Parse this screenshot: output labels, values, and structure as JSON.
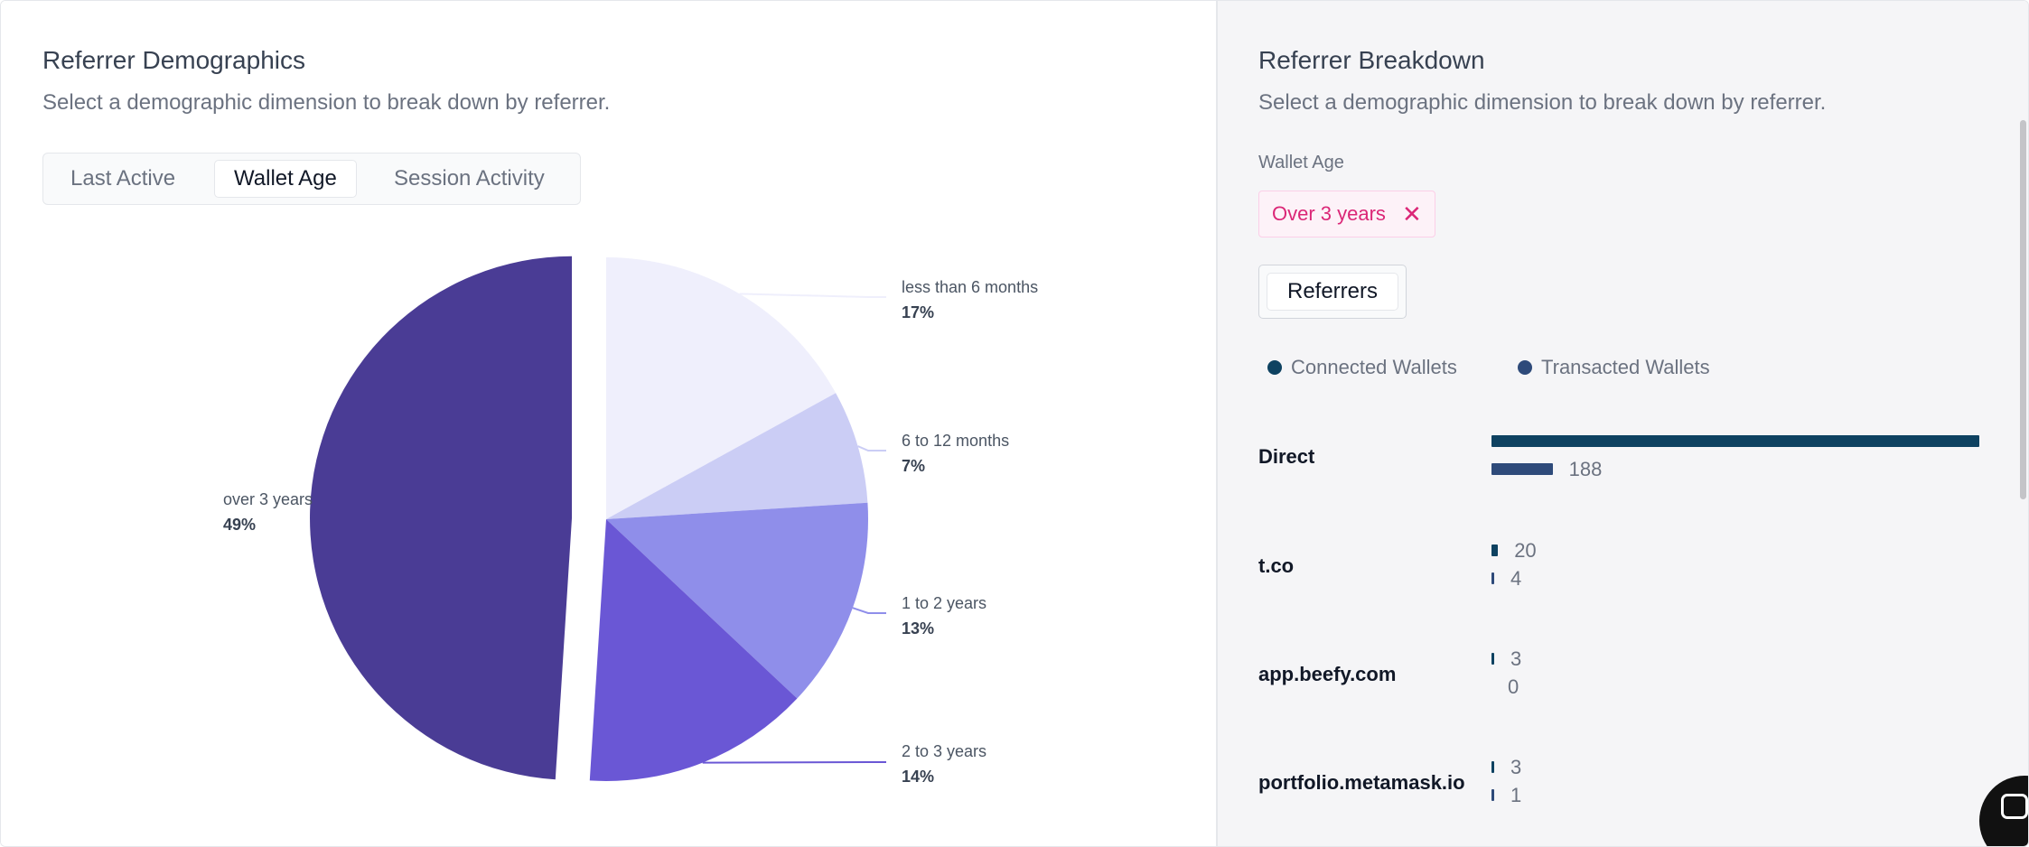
{
  "left_panel": {
    "title": "Referrer Demographics",
    "subtitle": "Select a demographic dimension to break down by referrer.",
    "tabs": [
      {
        "label": "Last Active",
        "active": false
      },
      {
        "label": "Wallet Age",
        "active": true
      },
      {
        "label": "Session Activity",
        "active": false
      }
    ]
  },
  "chart_data": {
    "type": "pie",
    "title": "",
    "slices": [
      {
        "label": "less than 6 months",
        "value": 17,
        "display": "17%",
        "color": "#efeffc"
      },
      {
        "label": "6 to 12 months",
        "value": 7,
        "display": "7%",
        "color": "#cbcdf5"
      },
      {
        "label": "1 to 2 years",
        "value": 13,
        "display": "13%",
        "color": "#8f8eea"
      },
      {
        "label": "2 to 3 years",
        "value": 14,
        "display": "14%",
        "color": "#6a57d5"
      },
      {
        "label": "over 3 years",
        "value": 49,
        "display": "49%",
        "color": "#4a3c95",
        "exploded": true
      }
    ]
  },
  "right_panel": {
    "title": "Referrer Breakdown",
    "subtitle": "Select a demographic dimension to break down by referrer.",
    "filter_label": "Wallet Age",
    "filter_chip": "Over 3 years",
    "referrers_button": "Referrers",
    "legend": [
      {
        "label": "Connected Wallets",
        "color": "#0e4261"
      },
      {
        "label": "Transacted Wallets",
        "color": "#2e4a7a"
      }
    ],
    "max_value": 1500,
    "rows": [
      {
        "name": "Direct",
        "connected": 1500,
        "connected_label": "",
        "transacted": 188,
        "transacted_label": "188"
      },
      {
        "name": "t.co",
        "connected": 20,
        "connected_label": "20",
        "transacted": 4,
        "transacted_label": "4"
      },
      {
        "name": "app.beefy.com",
        "connected": 3,
        "connected_label": "3",
        "transacted": 0,
        "transacted_label": "0"
      },
      {
        "name": "portfolio.metamask.io",
        "connected": 3,
        "connected_label": "3",
        "transacted": 1,
        "transacted_label": "1"
      }
    ]
  }
}
